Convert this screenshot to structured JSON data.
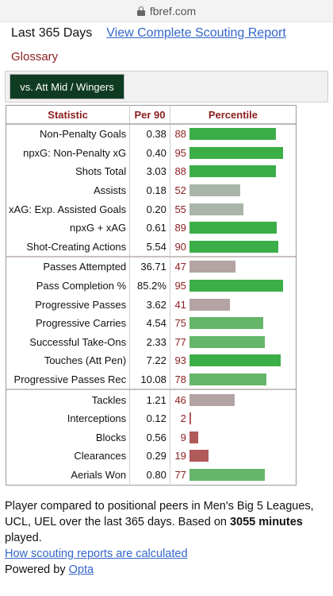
{
  "browser": {
    "url": "fbref.com"
  },
  "header": {
    "period_label": "Last 365 Days",
    "report_link": "View Complete Scouting Report",
    "glossary": "Glossary"
  },
  "filter": {
    "button_label": "vs. Att Mid / Wingers"
  },
  "table": {
    "headers": {
      "statistic": "Statistic",
      "per90": "Per 90",
      "percentile": "Percentile"
    },
    "groups": [
      [
        {
          "stat": "Non-Penalty Goals",
          "per90": "0.38",
          "pct": 88
        },
        {
          "stat": "npxG: Non-Penalty xG",
          "per90": "0.40",
          "pct": 95
        },
        {
          "stat": "Shots Total",
          "per90": "3.03",
          "pct": 88
        },
        {
          "stat": "Assists",
          "per90": "0.18",
          "pct": 52
        },
        {
          "stat": "xAG: Exp. Assisted Goals",
          "per90": "0.20",
          "pct": 55
        },
        {
          "stat": "npxG + xAG",
          "per90": "0.61",
          "pct": 89
        },
        {
          "stat": "Shot-Creating Actions",
          "per90": "5.54",
          "pct": 90
        }
      ],
      [
        {
          "stat": "Passes Attempted",
          "per90": "36.71",
          "pct": 47
        },
        {
          "stat": "Pass Completion %",
          "per90": "85.2%",
          "pct": 95
        },
        {
          "stat": "Progressive Passes",
          "per90": "3.62",
          "pct": 41
        },
        {
          "stat": "Progressive Carries",
          "per90": "4.54",
          "pct": 75
        },
        {
          "stat": "Successful Take-Ons",
          "per90": "2.33",
          "pct": 77
        },
        {
          "stat": "Touches (Att Pen)",
          "per90": "7.22",
          "pct": 93
        },
        {
          "stat": "Progressive Passes Rec",
          "per90": "10.08",
          "pct": 78
        }
      ],
      [
        {
          "stat": "Tackles",
          "per90": "1.21",
          "pct": 46
        },
        {
          "stat": "Interceptions",
          "per90": "0.12",
          "pct": 2
        },
        {
          "stat": "Blocks",
          "per90": "0.56",
          "pct": 9
        },
        {
          "stat": "Clearances",
          "per90": "0.29",
          "pct": 19
        },
        {
          "stat": "Aerials Won",
          "per90": "0.80",
          "pct": 77
        }
      ]
    ]
  },
  "footer": {
    "text_before": "Player compared to positional peers in Men's Big 5 Leagues, UCL, UEL over the last 365 days. Based on ",
    "minutes": "3055 minutes",
    "text_after": " played.",
    "how_link": "How scouting reports are calculated",
    "powered_by": "Powered by",
    "opta_link": "Opta"
  },
  "colors": {
    "high": "#3cae48",
    "mid_high": "#65b56a",
    "neutral": "#a9b5a8",
    "neutral_low": "#b3a3a3",
    "low": "#b05a5a"
  }
}
